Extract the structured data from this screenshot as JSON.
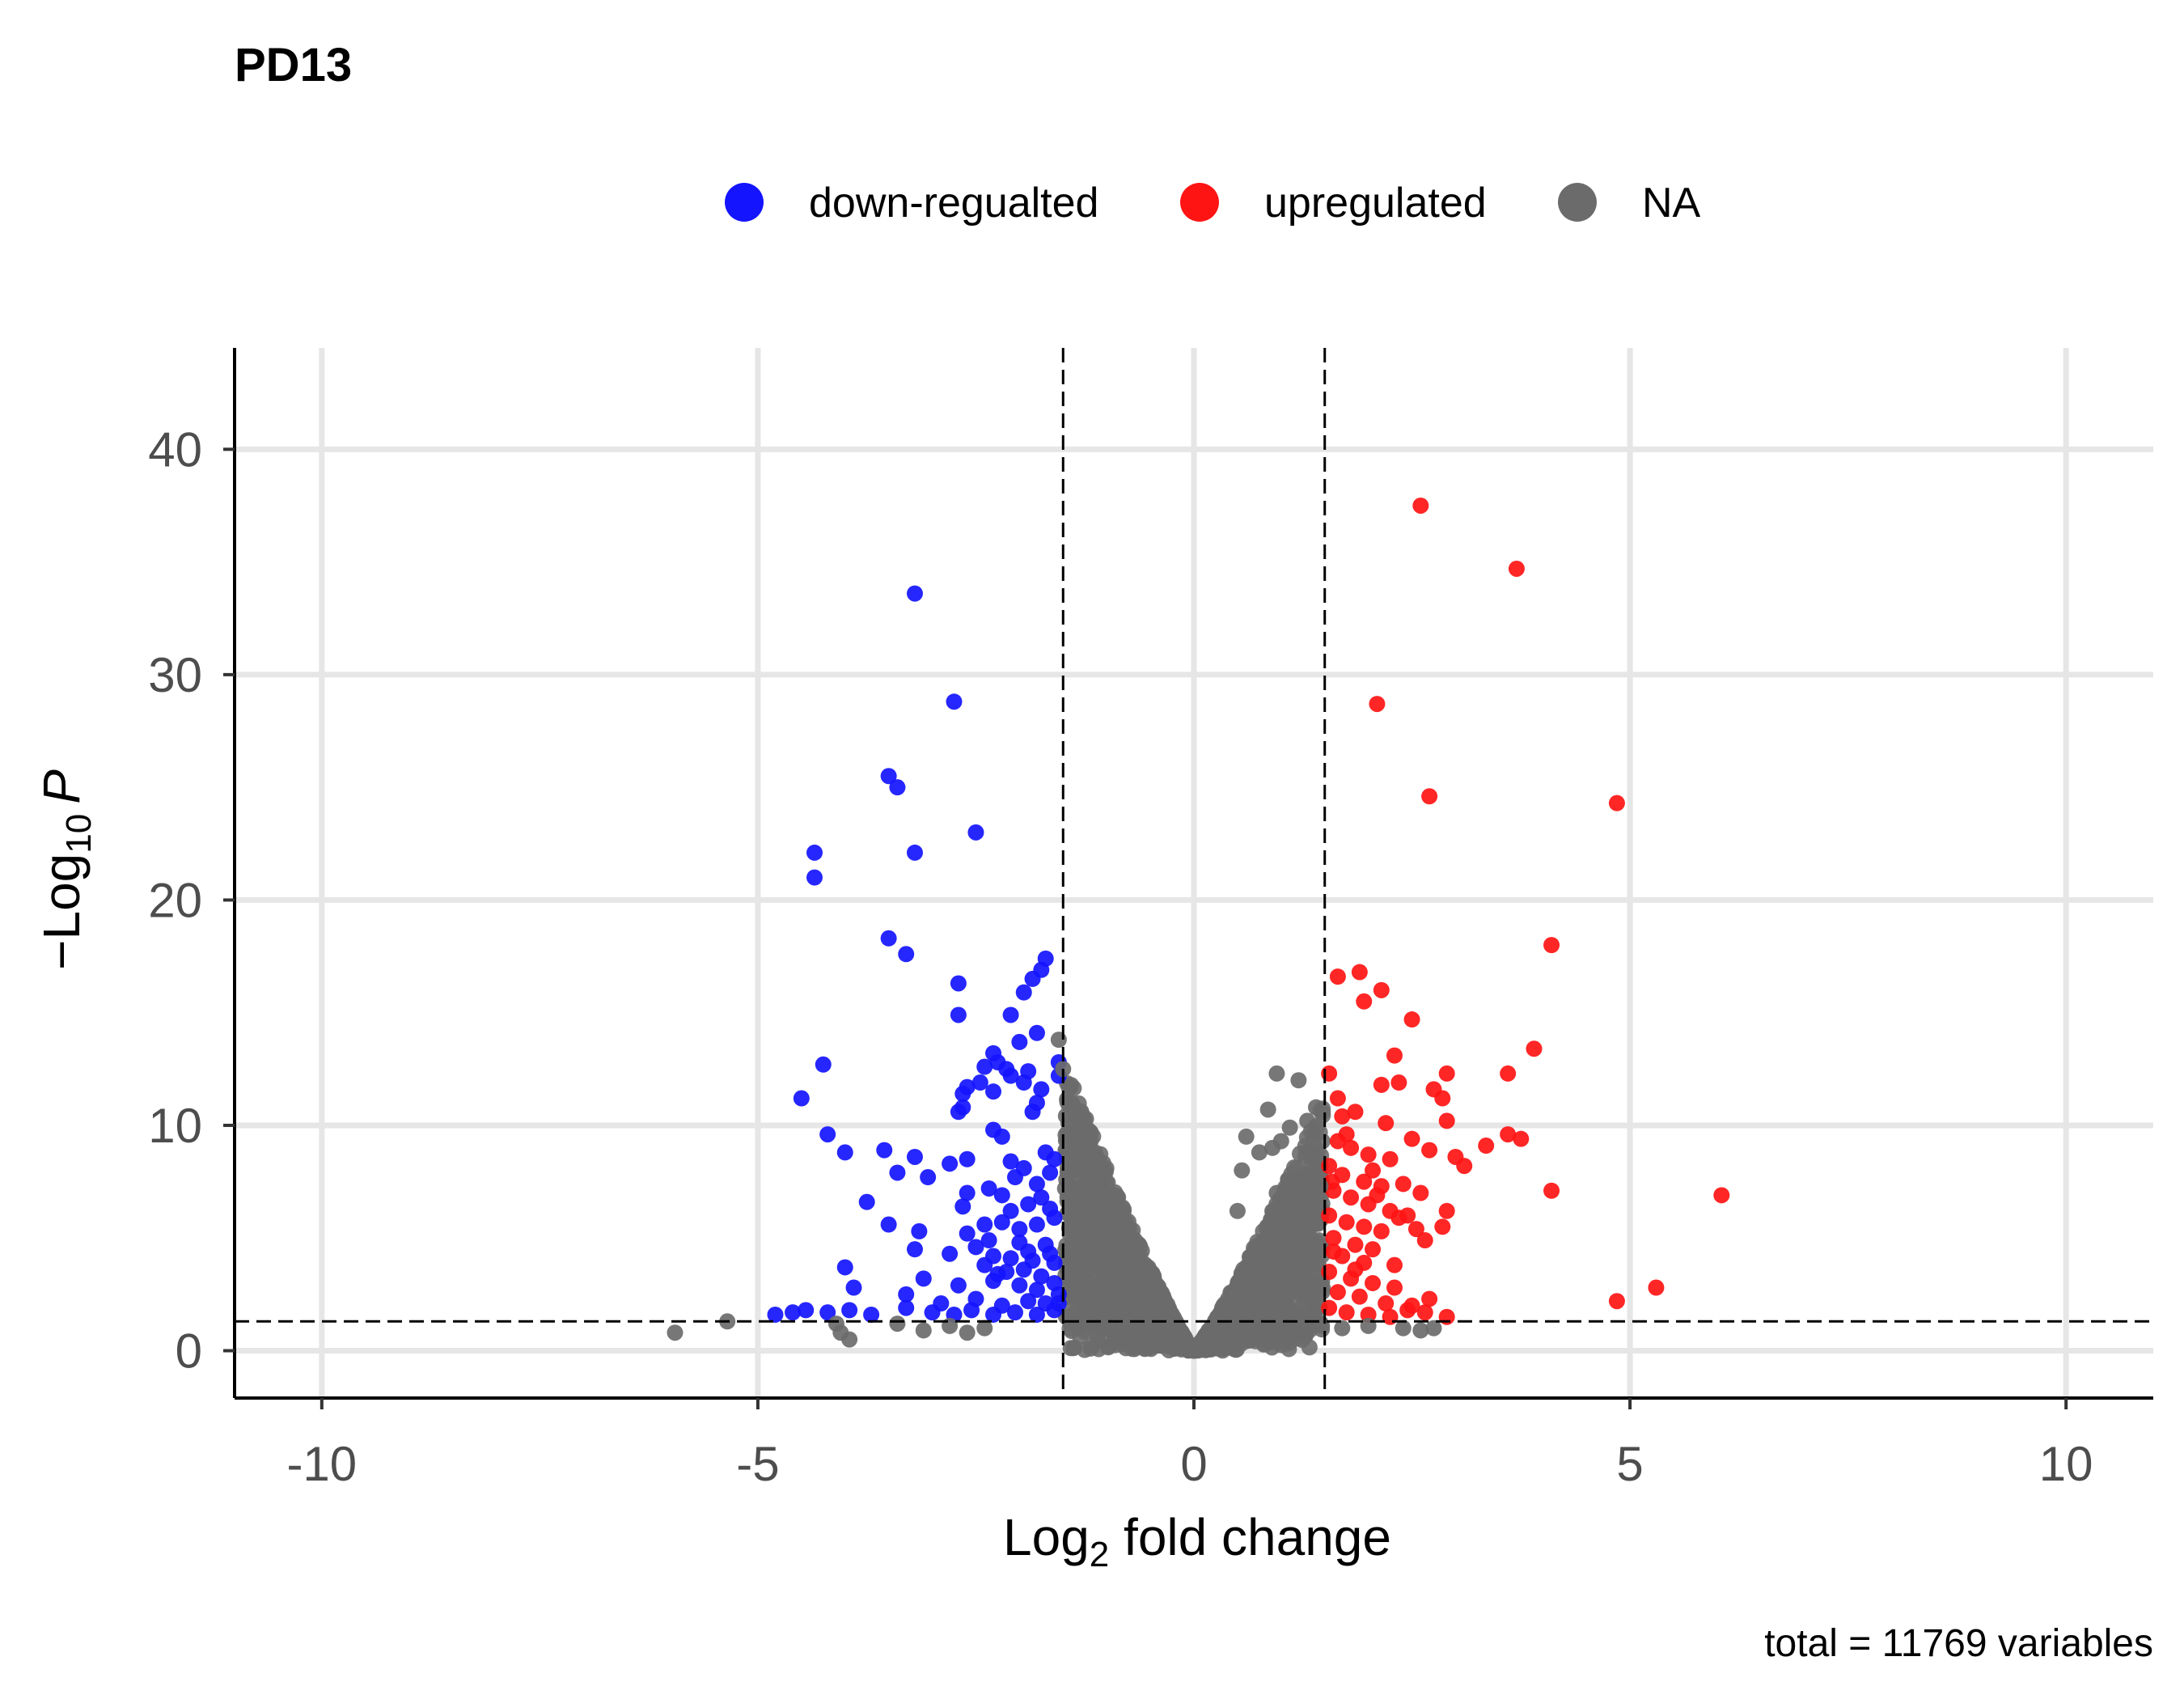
{
  "chart_data": {
    "type": "scatter",
    "title": "PD13",
    "xlabel": {
      "prefix": "Log",
      "sub": "2",
      "suffix": " fold change"
    },
    "ylabel": {
      "prefix": "−Log",
      "sub": "10",
      "suffix": "P"
    },
    "caption": "total = 11769 variables",
    "xlim": [
      -11,
      11
    ],
    "ylim": [
      -2.1,
      44.5
    ],
    "x_ticks": [
      -10,
      -5,
      0,
      5,
      10
    ],
    "x_tick_labels": [
      "-10",
      "-5",
      "0",
      "5",
      "10"
    ],
    "y_ticks": [
      0,
      10,
      20,
      30,
      40
    ],
    "y_tick_labels": [
      "0",
      "10",
      "20",
      "30",
      "40"
    ],
    "grid": true,
    "legend_position": "top",
    "thresholds": {
      "fc": [
        -1.5,
        1.5
      ],
      "p": 1.3
    },
    "colors": {
      "down": "#1414ff",
      "up": "#ff1414",
      "na": "#6b6b6b"
    },
    "legend": [
      {
        "label": "down-regualted",
        "color": "#1414ff"
      },
      {
        "label": "upregulated",
        "color": "#ff1414"
      },
      {
        "label": "NA",
        "color": "#6b6b6b"
      }
    ],
    "series": [
      {
        "name": "down-regualted",
        "points": [
          [
            -3.2,
            33.6
          ],
          [
            -2.75,
            28.8
          ],
          [
            -3.5,
            25.5
          ],
          [
            -3.4,
            25.0
          ],
          [
            -2.5,
            23.0
          ],
          [
            -4.35,
            22.1
          ],
          [
            -3.2,
            22.1
          ],
          [
            -4.35,
            21.0
          ],
          [
            -3.5,
            18.3
          ],
          [
            -3.3,
            17.6
          ],
          [
            -1.7,
            17.4
          ],
          [
            -1.75,
            16.9
          ],
          [
            -1.85,
            16.5
          ],
          [
            -1.95,
            15.9
          ],
          [
            -2.7,
            16.3
          ],
          [
            -2.7,
            14.9
          ],
          [
            -2.1,
            14.9
          ],
          [
            -1.8,
            14.1
          ],
          [
            -2.0,
            13.7
          ],
          [
            -4.25,
            12.7
          ],
          [
            -2.3,
            13.2
          ],
          [
            -2.25,
            12.8
          ],
          [
            -1.55,
            12.8
          ],
          [
            -1.55,
            12.2
          ],
          [
            -2.4,
            12.6
          ],
          [
            -2.15,
            12.5
          ],
          [
            -2.1,
            12.2
          ],
          [
            -1.9,
            12.4
          ],
          [
            -1.95,
            11.9
          ],
          [
            -2.6,
            11.7
          ],
          [
            -2.65,
            11.4
          ],
          [
            -1.75,
            11.6
          ],
          [
            -2.45,
            11.9
          ],
          [
            -2.3,
            11.5
          ],
          [
            -4.5,
            11.2
          ],
          [
            -2.65,
            10.8
          ],
          [
            -2.7,
            10.6
          ],
          [
            -1.8,
            11.0
          ],
          [
            -1.85,
            10.6
          ],
          [
            -2.3,
            9.8
          ],
          [
            -2.2,
            9.5
          ],
          [
            -4.2,
            9.6
          ],
          [
            -4.0,
            8.8
          ],
          [
            -3.55,
            8.9
          ],
          [
            -3.2,
            8.6
          ],
          [
            -2.6,
            8.5
          ],
          [
            -2.8,
            8.3
          ],
          [
            -2.1,
            8.4
          ],
          [
            -1.95,
            8.1
          ],
          [
            -2.05,
            7.7
          ],
          [
            -1.7,
            8.8
          ],
          [
            -1.6,
            8.5
          ],
          [
            -1.65,
            7.9
          ],
          [
            -1.8,
            7.4
          ],
          [
            -3.4,
            7.9
          ],
          [
            -3.05,
            7.7
          ],
          [
            -2.6,
            7.0
          ],
          [
            -2.35,
            7.2
          ],
          [
            -2.2,
            6.9
          ],
          [
            -3.75,
            6.6
          ],
          [
            -2.65,
            6.4
          ],
          [
            -1.75,
            6.8
          ],
          [
            -1.9,
            6.5
          ],
          [
            -2.1,
            6.2
          ],
          [
            -1.65,
            6.3
          ],
          [
            -3.5,
            5.6
          ],
          [
            -3.15,
            5.3
          ],
          [
            -2.6,
            5.2
          ],
          [
            -2.4,
            5.6
          ],
          [
            -2.2,
            5.7
          ],
          [
            -2.0,
            5.4
          ],
          [
            -1.8,
            5.6
          ],
          [
            -1.6,
            5.9
          ],
          [
            -3.2,
            4.5
          ],
          [
            -2.8,
            4.3
          ],
          [
            -2.5,
            4.6
          ],
          [
            -2.3,
            4.2
          ],
          [
            -2.1,
            4.1
          ],
          [
            -1.9,
            4.4
          ],
          [
            -1.7,
            4.7
          ],
          [
            -2.4,
            3.8
          ],
          [
            -2.15,
            3.5
          ],
          [
            -1.95,
            3.6
          ],
          [
            -1.75,
            3.3
          ],
          [
            -1.6,
            3.9
          ],
          [
            -4.0,
            3.7
          ],
          [
            -3.1,
            3.2
          ],
          [
            -2.7,
            2.9
          ],
          [
            -2.3,
            3.1
          ],
          [
            -2.0,
            2.9
          ],
          [
            -1.8,
            2.7
          ],
          [
            -1.6,
            3.0
          ],
          [
            -3.9,
            2.8
          ],
          [
            -3.3,
            2.5
          ],
          [
            -2.9,
            2.1
          ],
          [
            -2.5,
            2.3
          ],
          [
            -2.2,
            2.0
          ],
          [
            -1.9,
            2.2
          ],
          [
            -1.7,
            2.1
          ],
          [
            -1.55,
            2.5
          ],
          [
            -4.8,
            1.6
          ],
          [
            -4.6,
            1.7
          ],
          [
            -4.45,
            1.8
          ],
          [
            -4.2,
            1.7
          ],
          [
            -3.95,
            1.8
          ],
          [
            -3.7,
            1.6
          ],
          [
            -3.3,
            1.9
          ],
          [
            -3.0,
            1.7
          ],
          [
            -2.75,
            1.6
          ],
          [
            -2.55,
            1.8
          ],
          [
            -2.3,
            1.6
          ],
          [
            -2.05,
            1.7
          ],
          [
            -1.8,
            1.6
          ],
          [
            -1.6,
            1.8
          ],
          [
            -2.35,
            4.9
          ],
          [
            -2.0,
            4.8
          ],
          [
            -1.85,
            4.0
          ],
          [
            -1.65,
            4.3
          ],
          [
            -2.25,
            3.4
          ],
          [
            -1.55,
            2.1
          ]
        ]
      },
      {
        "name": "upregulated",
        "points": [
          [
            2.6,
            37.5
          ],
          [
            3.7,
            34.7
          ],
          [
            2.1,
            28.7
          ],
          [
            2.7,
            24.6
          ],
          [
            4.85,
            24.3
          ],
          [
            4.1,
            18.0
          ],
          [
            1.65,
            16.6
          ],
          [
            1.9,
            16.8
          ],
          [
            2.15,
            16.0
          ],
          [
            1.95,
            15.5
          ],
          [
            2.5,
            14.7
          ],
          [
            3.9,
            13.4
          ],
          [
            2.3,
            13.1
          ],
          [
            1.55,
            12.3
          ],
          [
            2.15,
            11.8
          ],
          [
            2.35,
            11.9
          ],
          [
            2.75,
            11.6
          ],
          [
            2.9,
            12.3
          ],
          [
            2.85,
            11.2
          ],
          [
            3.6,
            12.3
          ],
          [
            1.7,
            10.4
          ],
          [
            1.85,
            10.6
          ],
          [
            2.2,
            10.1
          ],
          [
            2.9,
            10.2
          ],
          [
            3.6,
            9.6
          ],
          [
            3.75,
            9.4
          ],
          [
            3.35,
            9.1
          ],
          [
            2.5,
            9.4
          ],
          [
            2.7,
            8.9
          ],
          [
            1.65,
            9.3
          ],
          [
            1.8,
            9.0
          ],
          [
            2.0,
            8.7
          ],
          [
            2.25,
            8.5
          ],
          [
            1.55,
            8.2
          ],
          [
            1.7,
            7.8
          ],
          [
            1.95,
            7.5
          ],
          [
            2.15,
            7.3
          ],
          [
            2.4,
            7.4
          ],
          [
            1.6,
            7.1
          ],
          [
            1.8,
            6.8
          ],
          [
            2.0,
            6.5
          ],
          [
            2.25,
            6.2
          ],
          [
            4.1,
            7.1
          ],
          [
            6.05,
            6.9
          ],
          [
            2.9,
            6.2
          ],
          [
            1.55,
            6.0
          ],
          [
            1.75,
            5.7
          ],
          [
            1.95,
            5.5
          ],
          [
            2.15,
            5.3
          ],
          [
            2.55,
            5.4
          ],
          [
            2.85,
            5.5
          ],
          [
            1.6,
            5.0
          ],
          [
            1.85,
            4.7
          ],
          [
            2.05,
            4.5
          ],
          [
            2.65,
            4.9
          ],
          [
            1.7,
            4.2
          ],
          [
            1.95,
            3.9
          ],
          [
            2.3,
            3.8
          ],
          [
            1.55,
            3.5
          ],
          [
            1.8,
            3.2
          ],
          [
            2.05,
            3.0
          ],
          [
            2.3,
            2.8
          ],
          [
            1.65,
            2.6
          ],
          [
            1.9,
            2.4
          ],
          [
            2.2,
            2.1
          ],
          [
            2.5,
            2.0
          ],
          [
            5.3,
            2.8
          ],
          [
            4.85,
            2.2
          ],
          [
            1.55,
            1.9
          ],
          [
            1.75,
            1.7
          ],
          [
            2.0,
            1.6
          ],
          [
            2.25,
            1.5
          ],
          [
            2.45,
            1.8
          ],
          [
            2.65,
            1.7
          ],
          [
            2.9,
            1.5
          ],
          [
            1.6,
            4.4
          ],
          [
            2.45,
            6.0
          ],
          [
            2.1,
            6.9
          ],
          [
            1.75,
            9.6
          ],
          [
            2.6,
            7.0
          ],
          [
            3.0,
            8.6
          ],
          [
            2.35,
            5.9
          ],
          [
            1.85,
            3.6
          ],
          [
            2.7,
            2.3
          ],
          [
            1.65,
            11.2
          ],
          [
            3.1,
            8.2
          ],
          [
            2.05,
            8.0
          ],
          [
            1.58,
            7.5
          ]
        ]
      },
      {
        "name": "NA",
        "points": [
          [
            -5.95,
            0.8
          ],
          [
            -5.35,
            1.3
          ],
          [
            -4.1,
            1.2
          ],
          [
            -4.05,
            0.8
          ],
          [
            -3.95,
            0.5
          ],
          [
            -3.4,
            1.2
          ],
          [
            -3.1,
            0.9
          ],
          [
            -2.8,
            1.1
          ],
          [
            -2.6,
            0.8
          ],
          [
            -2.4,
            1.0
          ],
          [
            -1.55,
            13.8
          ],
          [
            -1.5,
            12.5
          ],
          [
            -1.4,
            11.0
          ],
          [
            -1.35,
            10.5
          ],
          [
            -1.45,
            9.3
          ],
          [
            0.95,
            12.3
          ],
          [
            0.85,
            10.7
          ],
          [
            1.2,
            12.0
          ],
          [
            1.4,
            10.8
          ],
          [
            1.3,
            10.2
          ],
          [
            1.0,
            9.3
          ],
          [
            0.6,
            9.5
          ],
          [
            0.55,
            8.0
          ],
          [
            0.95,
            7.0
          ],
          [
            1.35,
            8.5
          ],
          [
            0.9,
            5.5
          ],
          [
            1.25,
            6.4
          ],
          [
            1.45,
            7.3
          ],
          [
            0.5,
            6.2
          ],
          [
            0.75,
            8.8
          ],
          [
            1.1,
            9.9
          ],
          [
            0.9,
            9.0
          ],
          [
            2.0,
            1.1
          ],
          [
            2.4,
            1.0
          ],
          [
            2.6,
            0.9
          ],
          [
            2.75,
            1.0
          ],
          [
            1.7,
            1.0
          ]
        ]
      }
    ],
    "na_cloud": [
      {
        "x_range": [
          -1.48,
          1.48
        ],
        "y_scale": 5.2,
        "power": 1.15,
        "count": 2200,
        "seed": 11
      }
    ]
  }
}
